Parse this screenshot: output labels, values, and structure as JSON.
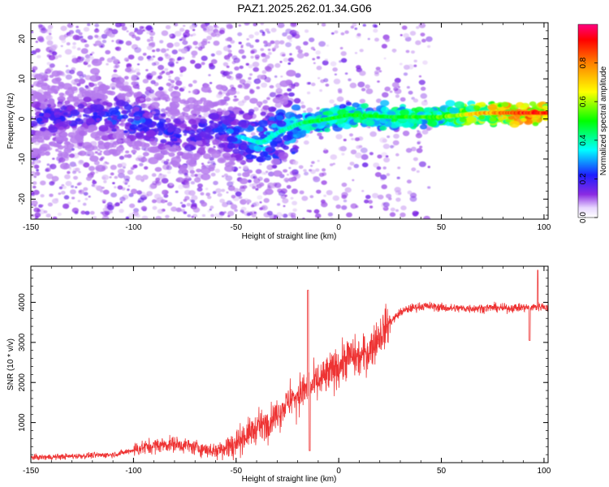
{
  "chart_data": [
    {
      "type": "heatmap",
      "title": "PAZ1.2025.262.01.34.G06",
      "xlabel": "Height of straight line (km)",
      "ylabel": "Frequency (Hz)",
      "xlim": [
        -150,
        102
      ],
      "ylim": [
        -25,
        24
      ],
      "xticks": [
        -150,
        -100,
        -50,
        0,
        50,
        100
      ],
      "yticks": [
        -20,
        -10,
        0,
        10,
        20
      ],
      "colorbar": {
        "label": "Normalized spectral amplitude",
        "range": [
          0,
          1
        ],
        "ticks": [
          "0.0",
          "0.2",
          "0.4",
          "0.6",
          "0.8"
        ],
        "colormap": [
          "#ffffff",
          "#8a2be2",
          "#1e1eff",
          "#00ffff",
          "#00ff00",
          "#ffff00",
          "#ff8000",
          "#ff0000",
          "#ff0080"
        ]
      },
      "ridge": [
        {
          "x": -150,
          "f": 0,
          "amp": 0.2
        },
        {
          "x": -120,
          "f": 1,
          "amp": 0.2
        },
        {
          "x": -105,
          "f": 0,
          "amp": 0.25
        },
        {
          "x": -90,
          "f": -1,
          "amp": 0.22
        },
        {
          "x": -75,
          "f": -5,
          "amp": 0.2
        },
        {
          "x": -60,
          "f": -2,
          "amp": 0.22
        },
        {
          "x": -45,
          "f": -5,
          "amp": 0.3
        },
        {
          "x": -38,
          "f": -6,
          "amp": 0.35
        },
        {
          "x": -28,
          "f": -3,
          "amp": 0.35
        },
        {
          "x": -18,
          "f": -1,
          "amp": 0.4
        },
        {
          "x": -5,
          "f": 0,
          "amp": 0.45
        },
        {
          "x": 5,
          "f": 1,
          "amp": 0.45
        },
        {
          "x": 25,
          "f": 0.5,
          "amp": 0.45
        },
        {
          "x": 50,
          "f": 0.5,
          "amp": 0.5
        },
        {
          "x": 70,
          "f": 1.5,
          "amp": 0.7
        },
        {
          "x": 90,
          "f": 1.5,
          "amp": 0.85
        },
        {
          "x": 102,
          "f": 1.5,
          "amp": 0.85
        }
      ]
    },
    {
      "type": "line",
      "xlabel": "Height of straight line (km)",
      "ylabel": "SNR (10 * v/v)",
      "xlim": [
        -150,
        102
      ],
      "ylim": [
        0,
        4900
      ],
      "xticks": [
        -150,
        -100,
        -50,
        0,
        50,
        100
      ],
      "yticks": [
        1000,
        2000,
        3000,
        4000
      ],
      "color": "#ee3333",
      "series": [
        {
          "x": [
            -150,
            -140,
            -130,
            -120,
            -110,
            -105,
            -100,
            -95,
            -90,
            -85,
            -80,
            -75,
            -70,
            -65,
            -60,
            -55,
            -50,
            -45,
            -40,
            -35,
            -30,
            -25,
            -20,
            -15,
            -10,
            -5,
            0,
            5,
            10,
            15,
            20,
            25,
            30,
            35,
            40,
            45,
            50,
            55,
            60,
            65,
            70,
            75,
            80,
            85,
            90,
            95,
            100,
            102
          ],
          "y": [
            130,
            140,
            160,
            180,
            200,
            250,
            320,
            380,
            420,
            450,
            470,
            430,
            380,
            330,
            300,
            400,
            500,
            700,
            850,
            1000,
            1200,
            1500,
            1700,
            1850,
            2000,
            2200,
            2400,
            2650,
            2600,
            2800,
            3200,
            3500,
            3750,
            3850,
            3900,
            3900,
            3870,
            3850,
            3850,
            3850,
            3850,
            3870,
            3850,
            3860,
            3870,
            3880,
            3900,
            3850
          ]
        }
      ],
      "annotations": [
        {
          "x": -15,
          "y": 4300,
          "note": "spike"
        },
        {
          "x": 97,
          "y": 4800,
          "note": "spike"
        },
        {
          "x": 93,
          "y": 3000,
          "note": "dip"
        }
      ]
    }
  ]
}
